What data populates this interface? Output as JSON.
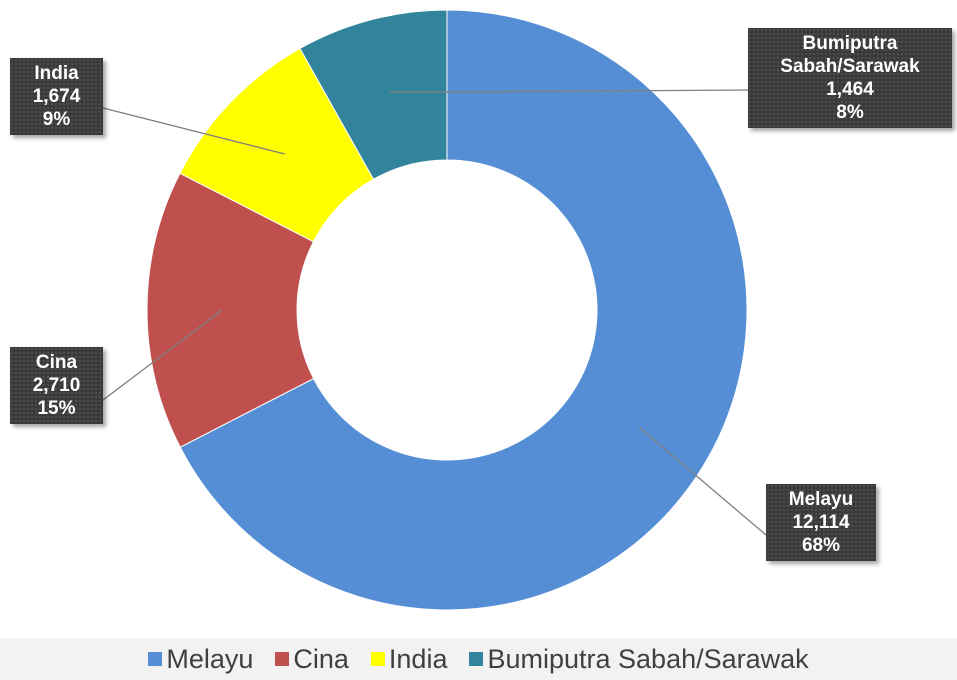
{
  "chart_data": {
    "type": "donut",
    "categories": [
      "Melayu",
      "Cina",
      "India",
      "Bumiputra Sabah/Sarawak"
    ],
    "values": [
      12114,
      2710,
      1674,
      1464
    ],
    "value_labels": [
      "12,114",
      "2,710",
      "1,674",
      "1,464"
    ],
    "percent_labels": [
      "68%",
      "15%",
      "9%",
      "8%"
    ],
    "colors": [
      "#558ed5",
      "#c0504d",
      "#ffff00",
      "#31849b"
    ],
    "legend": "bottom"
  }
}
